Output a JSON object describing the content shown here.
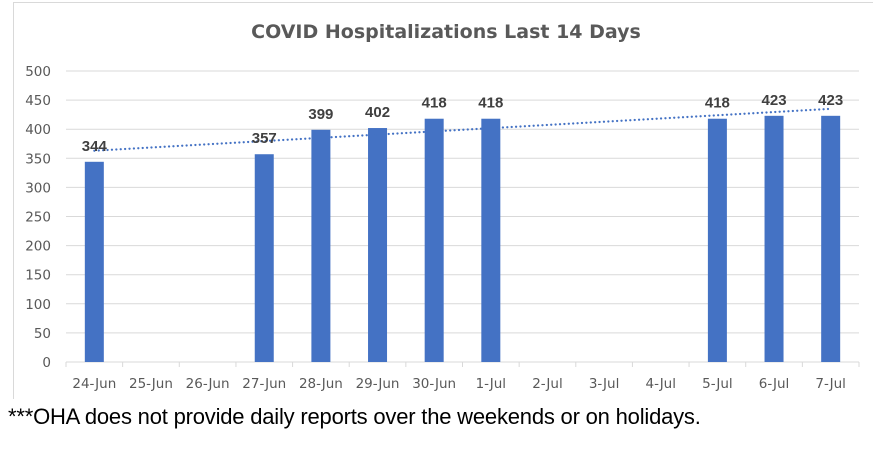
{
  "chart_data": {
    "type": "bar",
    "title": "COVID Hospitalizations Last 14 Days",
    "xlabel": "",
    "ylabel": "",
    "categories": [
      "24-Jun",
      "25-Jun",
      "26-Jun",
      "27-Jun",
      "28-Jun",
      "29-Jun",
      "30-Jun",
      "1-Jul",
      "2-Jul",
      "3-Jul",
      "4-Jul",
      "5-Jul",
      "6-Jul",
      "7-Jul"
    ],
    "series": [
      {
        "name": "Hospitalizations",
        "values": [
          344,
          null,
          null,
          357,
          399,
          402,
          418,
          418,
          null,
          null,
          null,
          418,
          423,
          423
        ],
        "color": "#4472c4",
        "data_labels": true
      }
    ],
    "trendline": {
      "type": "linear",
      "style": "dotted",
      "color": "#4472c4",
      "start_value": 363,
      "end_value": 435
    },
    "ylim": [
      0,
      500
    ],
    "yticks": [
      0,
      50,
      100,
      150,
      200,
      250,
      300,
      350,
      400,
      450,
      500
    ],
    "grid": true,
    "legend": "none"
  },
  "footnote": "***OHA does not provide daily reports over the weekends or on holidays."
}
